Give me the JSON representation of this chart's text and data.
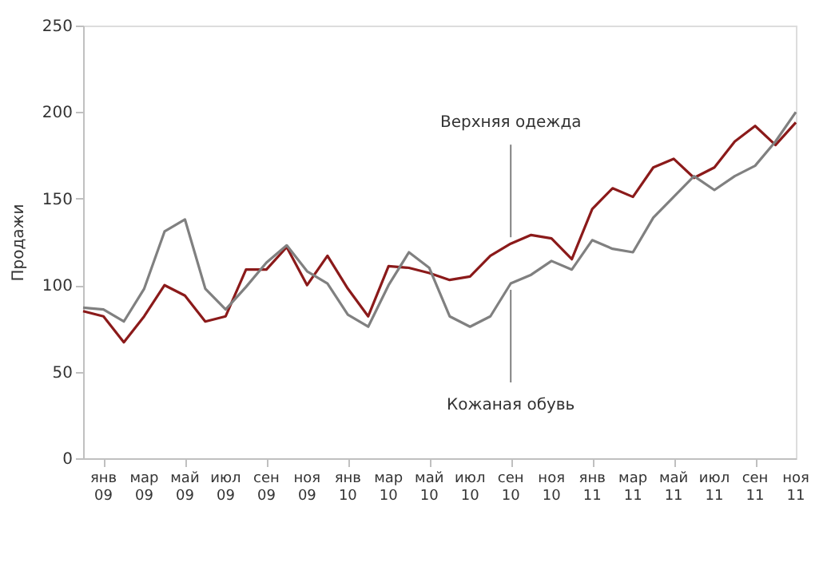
{
  "chart_data": {
    "type": "line",
    "ylabel": "Продажи",
    "categories": [
      null,
      "янв 09",
      null,
      "мар 09",
      null,
      "май 09",
      null,
      "июл 09",
      null,
      "сен 09",
      null,
      "ноя 09",
      null,
      "янв 10",
      null,
      "мар 10",
      null,
      "май 10",
      null,
      "июл 10",
      null,
      "сен 10",
      null,
      "ноя 10",
      null,
      "янв 11",
      null,
      "мар 11",
      null,
      "май 11",
      null,
      "июл 11",
      null,
      "сен 11",
      null,
      "ноя 11"
    ],
    "series": [
      {
        "color": "#8b1a1a",
        "values": [
          85,
          82,
          67,
          82,
          100,
          94,
          79,
          82,
          109,
          109,
          122,
          100,
          117,
          98,
          82,
          111,
          110,
          107,
          103,
          105,
          117,
          124,
          129,
          127,
          115,
          144,
          156,
          151,
          168,
          173,
          162,
          168,
          183,
          192,
          181,
          194
        ]
      },
      {
        "color": "#808080",
        "values": [
          87,
          86,
          79,
          98,
          131,
          138,
          98,
          86,
          99,
          113,
          123,
          108,
          101,
          83,
          76,
          100,
          119,
          110,
          82,
          76,
          82,
          101,
          106,
          114,
          109,
          126,
          121,
          119,
          139,
          151,
          163,
          155,
          163,
          169,
          183,
          200
        ]
      }
    ],
    "annotations": [
      {
        "text": "Верхняя одежда",
        "x": "сен 10",
        "y": 124
      },
      {
        "text": "Кожаная обувь",
        "x": "сен 10",
        "y": 101
      }
    ],
    "ylim": [
      0,
      250
    ],
    "yticks": [
      0,
      50,
      100,
      150,
      200,
      250
    ],
    "grid": false,
    "marker": "none",
    "line_style": "solid"
  }
}
